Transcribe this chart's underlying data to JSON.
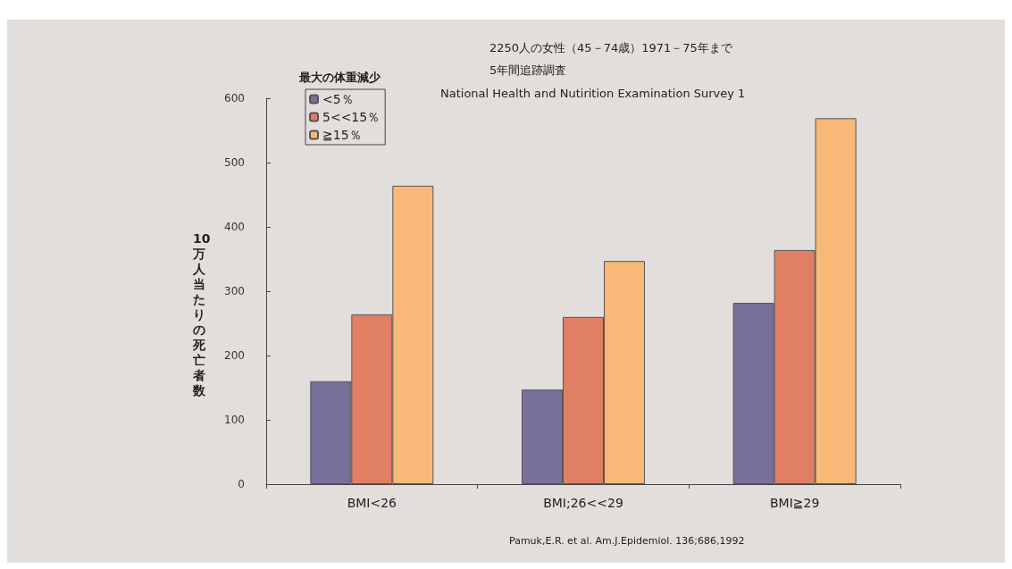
{
  "chart_data": {
    "type": "bar",
    "ylabel": "10万人当たりの死亡者数",
    "legend_title": "最大の体重減少",
    "legend": "top left",
    "categories": [
      "BMI<26",
      "BMI;26<<29",
      "BMI≧29"
    ],
    "series": [
      {
        "name": "<5％",
        "color": "#77709a",
        "values": [
          160,
          147,
          282
        ]
      },
      {
        "name": "5<<15％",
        "color": "#e07f64",
        "values": [
          264,
          260,
          364
        ]
      },
      {
        "name": "≧15％",
        "color": "#f8b878",
        "values": [
          464,
          347,
          569
        ]
      }
    ],
    "ylim": [
      0,
      600
    ],
    "yticks": [
      0,
      100,
      200,
      300,
      400,
      500,
      600
    ],
    "grid": false,
    "annotations": [
      "2250人の女性（45－74歳）1971－75年まで",
      "5年間追跡調査",
      "National Health and Nutirition Examination Survey 1",
      "Pamuk,E.R. et al. Am.J.Epidemiol. 136;686,1992"
    ]
  }
}
